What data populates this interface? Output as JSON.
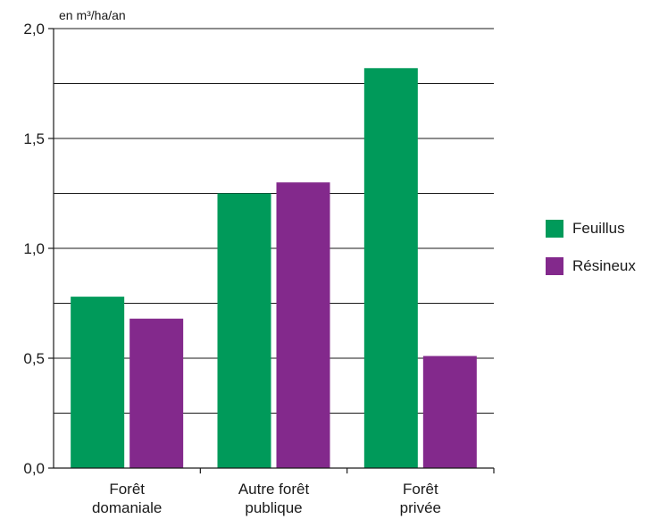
{
  "chart_data": {
    "type": "bar",
    "unit_label": "en m³/ha/an",
    "categories": [
      [
        "Forêt",
        "domaniale"
      ],
      [
        "Autre forêt",
        "publique"
      ],
      [
        "Forêt",
        "privée"
      ]
    ],
    "series": [
      {
        "name": "Feuillus",
        "color": "#009a5a",
        "values": [
          0.78,
          1.25,
          1.82
        ]
      },
      {
        "name": "Résineux",
        "color": "#83298c",
        "values": [
          0.68,
          1.3,
          0.51
        ]
      }
    ],
    "ylim": [
      0,
      2.0
    ],
    "y_ticks": [
      "0,0",
      "0,5",
      "1,0",
      "1,5",
      "2,0"
    ],
    "y_tick_values": [
      0,
      0.5,
      1.0,
      1.5,
      2.0
    ],
    "gridlines": [
      0.25,
      0.5,
      0.75,
      1.0,
      1.25,
      1.5,
      1.75,
      2.0
    ],
    "grid": true,
    "legend_position": "right"
  }
}
